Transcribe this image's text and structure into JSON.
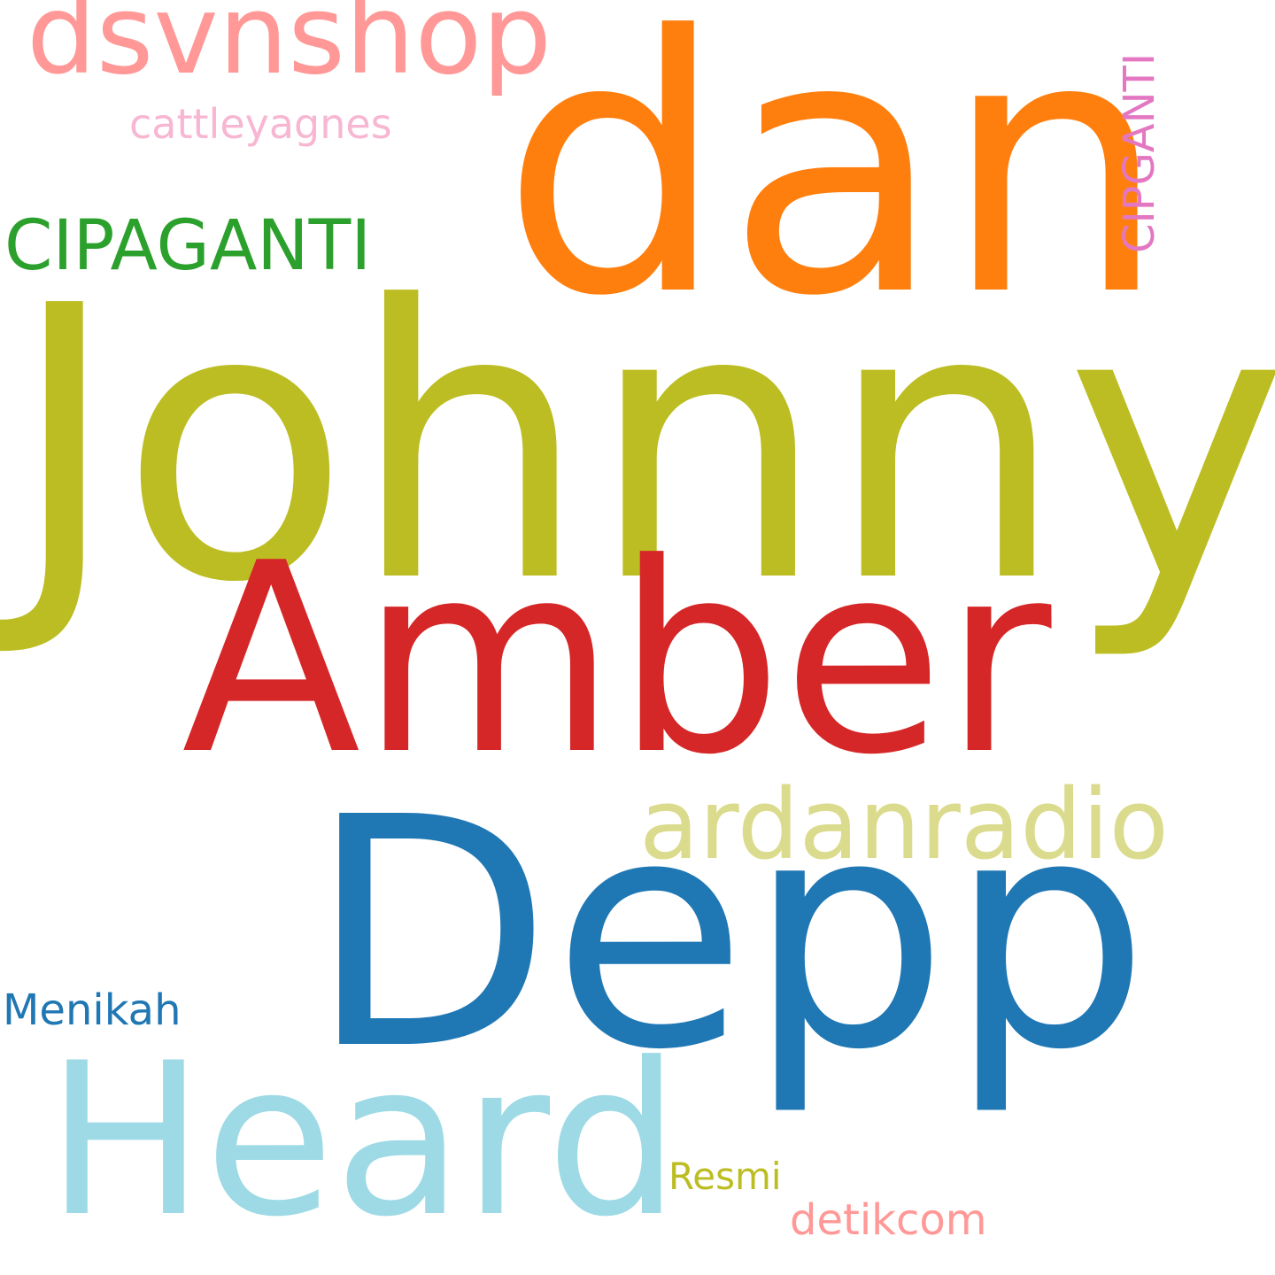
{
  "cloud": {
    "words": {
      "johnny": {
        "text": "Johnny",
        "color": "#bcbd22"
      },
      "dan": {
        "text": "dan",
        "color": "#ff7f0e"
      },
      "depp": {
        "text": "Depp",
        "color": "#1f77b4"
      },
      "amber": {
        "text": "Amber",
        "color": "#d62728"
      },
      "heard": {
        "text": "Heard",
        "color": "#9edae5"
      },
      "dsvnshop": {
        "text": "dsvnshop",
        "color": "#ff9896"
      },
      "ardanradio": {
        "text": "ardanradio",
        "color": "#dbdb8d"
      },
      "cipaganti": {
        "text": "CIPAGANTI",
        "color": "#2ca02c"
      },
      "cipganti": {
        "text": "CIPGANTI",
        "color": "#e377c2"
      },
      "cattleyagnes": {
        "text": "cattleyagnes",
        "color": "#f7b6d2"
      },
      "menikah": {
        "text": "Menikah",
        "color": "#1f77b4"
      },
      "resmi": {
        "text": "Resmi",
        "color": "#bcbd22"
      },
      "detikcom": {
        "text": "detikcom",
        "color": "#ff9896"
      }
    }
  }
}
